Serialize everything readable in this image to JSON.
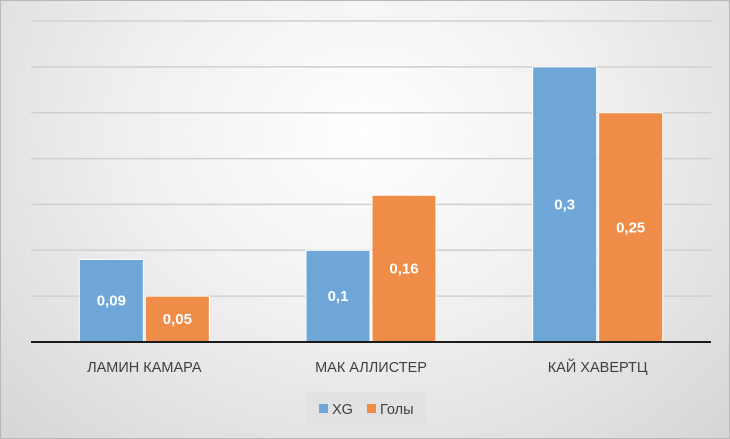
{
  "chart_data": {
    "type": "bar",
    "categories": [
      "ЛАМИН КАМАРА",
      "МАК АЛЛИСТЕР",
      "КАЙ ХАВЕРТЦ"
    ],
    "series": [
      {
        "name": "XG",
        "values": [
          0.09,
          0.1,
          0.3
        ],
        "labels": [
          "0,09",
          "0,1",
          "0,3"
        ],
        "color": "#6fa6d8"
      },
      {
        "name": "Голы",
        "values": [
          0.05,
          0.16,
          0.25
        ],
        "labels": [
          "0,05",
          "0,16",
          "0,25"
        ],
        "color": "#ef8c48"
      }
    ],
    "title": "",
    "xlabel": "",
    "ylabel": "",
    "ylim": [
      0,
      0.35
    ],
    "grid_step": 0.05,
    "grid": true,
    "y_tick_labels_shown": false,
    "legend_placement": "bottom"
  }
}
